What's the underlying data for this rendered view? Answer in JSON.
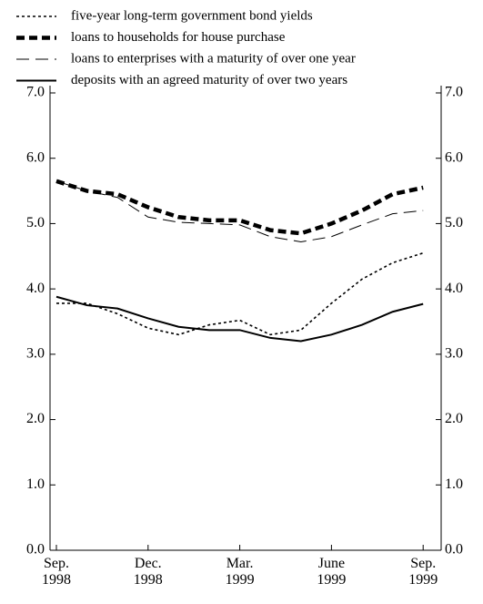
{
  "chart_data": {
    "type": "line",
    "categories": [
      "Sep. 1998",
      null,
      null,
      "Dec. 1998",
      null,
      null,
      "Mar. 1999",
      null,
      null,
      "June 1999",
      null,
      null,
      "Sep. 1999"
    ],
    "series": [
      {
        "name": "five-year long-term government bond yields",
        "color": "#000000",
        "values": [
          3.78,
          3.78,
          3.62,
          3.4,
          3.3,
          3.45,
          3.52,
          3.3,
          3.37,
          3.78,
          4.15,
          4.4,
          4.55
        ]
      },
      {
        "name": "loans to households for house purchase",
        "color": "#000000",
        "values": [
          5.65,
          5.5,
          5.45,
          5.25,
          5.1,
          5.05,
          5.05,
          4.9,
          4.85,
          5.0,
          5.2,
          5.45,
          5.55
        ]
      },
      {
        "name": "loans to enterprises with a maturity of over one year",
        "color": "#000000",
        "values": [
          5.65,
          5.5,
          5.4,
          5.1,
          5.02,
          5.0,
          4.98,
          4.8,
          4.72,
          4.8,
          4.98,
          5.15,
          5.2
        ]
      },
      {
        "name": "deposits with an agreed maturity of over two years",
        "color": "#000000",
        "values": [
          3.88,
          3.75,
          3.7,
          3.55,
          3.42,
          3.37,
          3.37,
          3.25,
          3.2,
          3.3,
          3.45,
          3.65,
          3.77
        ]
      }
    ],
    "ylim": [
      0,
      7
    ],
    "yticks": [
      {
        "value": 0,
        "label": "0.0"
      },
      {
        "value": 1,
        "label": "1.0"
      },
      {
        "value": 2,
        "label": "2.0"
      },
      {
        "value": 3,
        "label": "3.0"
      },
      {
        "value": 4,
        "label": "4.0"
      },
      {
        "value": 5,
        "label": "5.0"
      },
      {
        "value": 6,
        "label": "6.0"
      },
      {
        "value": 7,
        "label": "7.0"
      }
    ],
    "y2lim": [
      0,
      7
    ],
    "y2ticks": [
      {
        "value": 0,
        "label": "0.0"
      },
      {
        "value": 1,
        "label": "1.0"
      },
      {
        "value": 2,
        "label": "2.0"
      },
      {
        "value": 3,
        "label": "3.0"
      },
      {
        "value": 4,
        "label": "4.0"
      },
      {
        "value": 5,
        "label": "5.0"
      },
      {
        "value": 6,
        "label": "6.0"
      },
      {
        "value": 7,
        "label": "7.0"
      }
    ],
    "grid": false
  }
}
